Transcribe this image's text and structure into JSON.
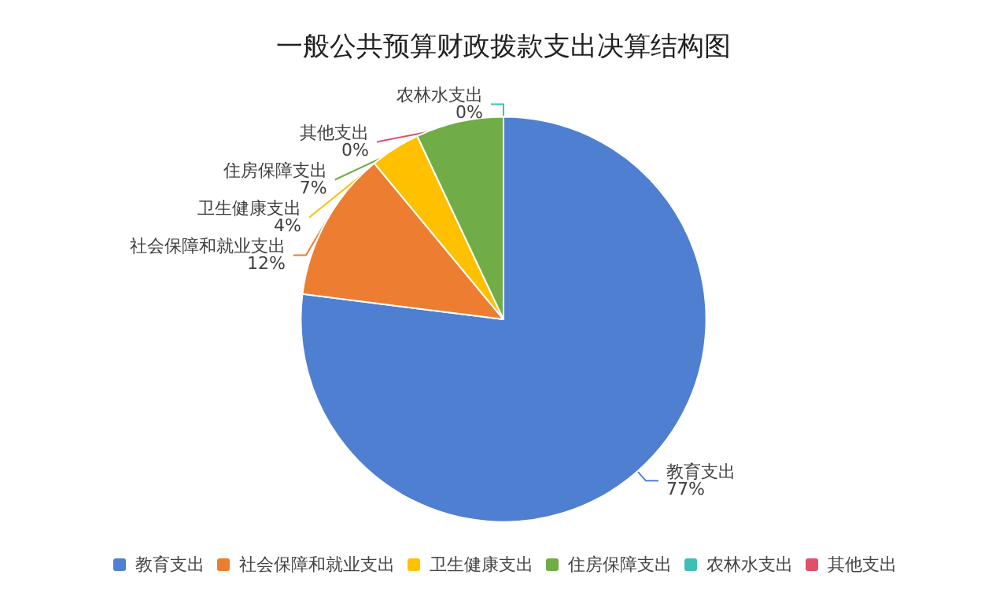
{
  "chart_data": {
    "type": "pie",
    "title": "一般公共预算财政拨款支出决算结构图",
    "categories": [
      "教育支出",
      "社会保障和就业支出",
      "卫生健康支出",
      "住房保障支出",
      "农林水支出",
      "其他支出"
    ],
    "values": [
      77,
      12,
      4,
      7,
      0,
      0
    ],
    "colors": [
      "#4f7fd0",
      "#ed7d31",
      "#ffc000",
      "#70ad47",
      "#3fbfb4",
      "#e0506a"
    ],
    "value_labels": [
      "77%",
      "12%",
      "4%",
      "7%",
      "0%",
      "0%"
    ],
    "legend": "bottom"
  }
}
